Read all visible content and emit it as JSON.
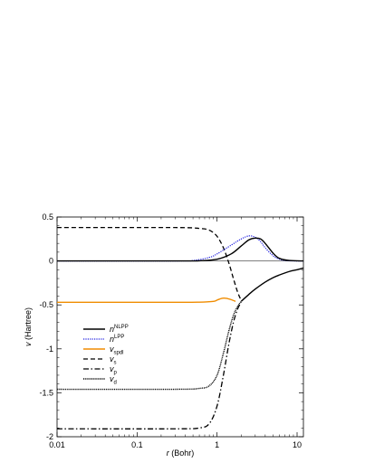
{
  "chart_data": {
    "type": "line",
    "xlabel": {
      "var": "r",
      "unit": " (Bohr)"
    },
    "ylabel": {
      "var": "v",
      "unit": " (Hartree)"
    },
    "x_scale": "log",
    "xlim": [
      0.01,
      12
    ],
    "ylim": [
      -2,
      0.5
    ],
    "x_ticks": [
      {
        "value": 0.01,
        "label": "0.01"
      },
      {
        "value": 0.1,
        "label": "0.1"
      },
      {
        "value": 1,
        "label": "1"
      },
      {
        "value": 10,
        "label": "10"
      }
    ],
    "y_ticks": [
      {
        "value": 0.5,
        "label": "0.5"
      },
      {
        "value": 0,
        "label": "0"
      },
      {
        "value": -0.5,
        "label": "-0.5"
      },
      {
        "value": -1,
        "label": "-1"
      },
      {
        "value": -1.5,
        "label": "-1.5"
      },
      {
        "value": -2,
        "label": "-2"
      }
    ],
    "zero_line": true,
    "grid": false,
    "legend_position": "center-left",
    "series": [
      {
        "name": "n",
        "sup": "NLPP",
        "sub": "",
        "color": "#000000",
        "dash": "solid",
        "x": [
          0.01,
          0.3,
          0.6,
          1.0,
          1.5,
          2.0,
          2.5,
          3.0,
          3.5,
          4.0,
          5.0,
          6.0,
          8.0,
          12.0
        ],
        "y": [
          0,
          0,
          0.002,
          0.02,
          0.08,
          0.17,
          0.24,
          0.26,
          0.25,
          0.2,
          0.09,
          0.03,
          0.005,
          0
        ]
      },
      {
        "name": "n",
        "sup": "LPP",
        "sub": "",
        "color": "#1f1fe0",
        "dash": "dotted",
        "x": [
          0.01,
          0.3,
          0.5,
          0.8,
          1.0,
          1.5,
          2.0,
          2.5,
          3.0,
          3.5,
          4.0,
          5.0,
          6.0,
          8.0,
          12.0
        ],
        "y": [
          0,
          0,
          0.005,
          0.04,
          0.08,
          0.18,
          0.25,
          0.285,
          0.27,
          0.22,
          0.15,
          0.06,
          0.02,
          0.002,
          0
        ]
      },
      {
        "name": "v",
        "sup": "",
        "sub": "spdl",
        "color": "#f08c00",
        "dash": "solid",
        "x": [
          0.01,
          0.3,
          0.6,
          0.9,
          1.0,
          1.15,
          1.3,
          1.5,
          1.7
        ],
        "y": [
          -0.47,
          -0.47,
          -0.469,
          -0.46,
          -0.445,
          -0.425,
          -0.425,
          -0.44,
          -0.46
        ]
      },
      {
        "name": "v",
        "sup": "",
        "sub": "s",
        "color": "#000000",
        "dash": "dashed",
        "x": [
          0.01,
          0.3,
          0.6,
          0.8,
          1.0,
          1.2,
          1.4,
          1.6,
          1.8,
          2.0
        ],
        "y": [
          0.38,
          0.38,
          0.37,
          0.35,
          0.28,
          0.15,
          -0.02,
          -0.2,
          -0.35,
          -0.45
        ]
      },
      {
        "name": "v",
        "sup": "",
        "sub": "p",
        "color": "#000000",
        "dash": "dashdot",
        "x": [
          0.01,
          0.3,
          0.6,
          0.8,
          1.0,
          1.2,
          1.4,
          1.6,
          1.8,
          2.0
        ],
        "y": [
          -1.91,
          -1.91,
          -1.9,
          -1.85,
          -1.65,
          -1.3,
          -0.95,
          -0.7,
          -0.55,
          -0.47
        ]
      },
      {
        "name": "v",
        "sup": "",
        "sub": "d",
        "color": "#000000",
        "dash": "densedot",
        "x": [
          0.01,
          0.3,
          0.6,
          0.8,
          1.0,
          1.2,
          1.4,
          1.6,
          1.8,
          2.0
        ],
        "y": [
          -1.46,
          -1.46,
          -1.45,
          -1.42,
          -1.3,
          -1.05,
          -0.8,
          -0.62,
          -0.52,
          -0.46
        ]
      },
      {
        "name": "",
        "sup": "",
        "sub": "",
        "legend": false,
        "color": "#000000",
        "dash": "solid",
        "x": [
          2.0,
          2.5,
          3.0,
          4.0,
          5.0,
          6.0,
          8.0,
          10.0,
          12.0
        ],
        "y": [
          -0.46,
          -0.38,
          -0.32,
          -0.24,
          -0.19,
          -0.16,
          -0.12,
          -0.1,
          -0.08
        ]
      }
    ]
  }
}
